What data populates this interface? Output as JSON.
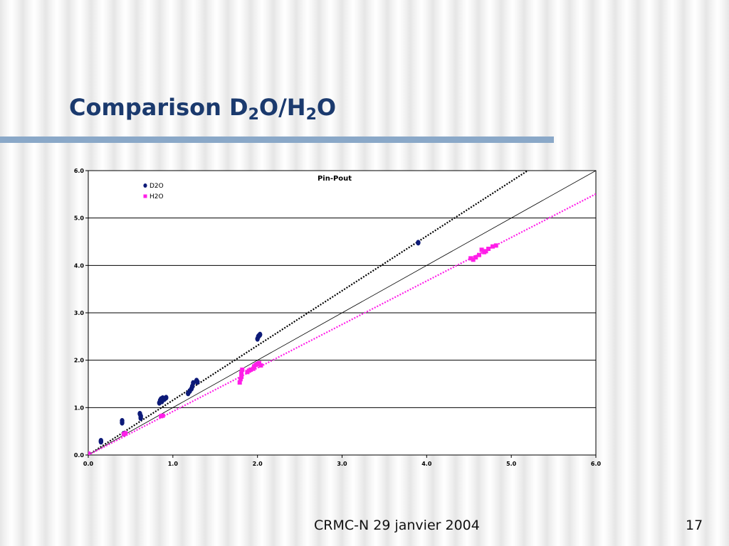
{
  "slide": {
    "title_parts": [
      "Comparison D",
      "2",
      "O/H",
      "2",
      "O"
    ],
    "footer": "CRMC-N 29 janvier 2004",
    "page_number": "17"
  },
  "chart_data": {
    "type": "scatter",
    "title": "Pin-Pout",
    "xlim": [
      0,
      6
    ],
    "ylim": [
      0,
      6
    ],
    "x_ticks": [
      "0.0",
      "1.0",
      "2.0",
      "3.0",
      "4.0",
      "5.0",
      "6.0"
    ],
    "y_ticks": [
      "0.0",
      "1.0",
      "2.0",
      "3.0",
      "4.0",
      "5.0",
      "6.0"
    ],
    "grid": true,
    "legend": "top-left",
    "series": [
      {
        "name": "D2O",
        "color": "#0d1a78",
        "marker": "circle",
        "points": [
          [
            0.0,
            0.0
          ],
          [
            0.15,
            0.3
          ],
          [
            0.15,
            0.28
          ],
          [
            0.4,
            0.72
          ],
          [
            0.4,
            0.68
          ],
          [
            0.42,
            0.45
          ],
          [
            0.61,
            0.87
          ],
          [
            0.62,
            0.82
          ],
          [
            0.62,
            0.78
          ],
          [
            0.84,
            1.1
          ],
          [
            0.85,
            1.15
          ],
          [
            0.86,
            1.18
          ],
          [
            0.87,
            1.13
          ],
          [
            0.88,
            1.2
          ],
          [
            0.9,
            1.18
          ],
          [
            0.92,
            1.21
          ],
          [
            1.18,
            1.3
          ],
          [
            1.2,
            1.35
          ],
          [
            1.22,
            1.4
          ],
          [
            1.23,
            1.45
          ],
          [
            1.24,
            1.52
          ],
          [
            1.28,
            1.57
          ],
          [
            1.29,
            1.54
          ],
          [
            2.0,
            2.45
          ],
          [
            2.01,
            2.5
          ],
          [
            2.02,
            2.52
          ],
          [
            2.03,
            2.54
          ],
          [
            3.9,
            4.48
          ]
        ],
        "fit_slope": 1.155
      },
      {
        "name": "H2O",
        "color": "#ff1ee8",
        "marker": "square",
        "points": [
          [
            0.0,
            0.03
          ],
          [
            0.42,
            0.44
          ],
          [
            0.44,
            0.46
          ],
          [
            0.86,
            0.82
          ],
          [
            0.88,
            0.83
          ],
          [
            1.79,
            1.53
          ],
          [
            1.8,
            1.6
          ],
          [
            1.81,
            1.65
          ],
          [
            1.81,
            1.73
          ],
          [
            1.82,
            1.8
          ],
          [
            1.88,
            1.75
          ],
          [
            1.9,
            1.78
          ],
          [
            1.92,
            1.8
          ],
          [
            1.95,
            1.82
          ],
          [
            1.96,
            1.87
          ],
          [
            1.98,
            1.9
          ],
          [
            2.0,
            1.92
          ],
          [
            2.02,
            1.94
          ],
          [
            2.04,
            1.89
          ],
          [
            4.52,
            4.15
          ],
          [
            4.55,
            4.12
          ],
          [
            4.58,
            4.17
          ],
          [
            4.62,
            4.22
          ],
          [
            4.65,
            4.33
          ],
          [
            4.68,
            4.28
          ],
          [
            4.7,
            4.3
          ],
          [
            4.73,
            4.35
          ],
          [
            4.78,
            4.4
          ],
          [
            4.82,
            4.42
          ]
        ],
        "fit_slope": 0.918
      }
    ],
    "reference_line": {
      "slope": 1,
      "color": "#000000"
    }
  }
}
